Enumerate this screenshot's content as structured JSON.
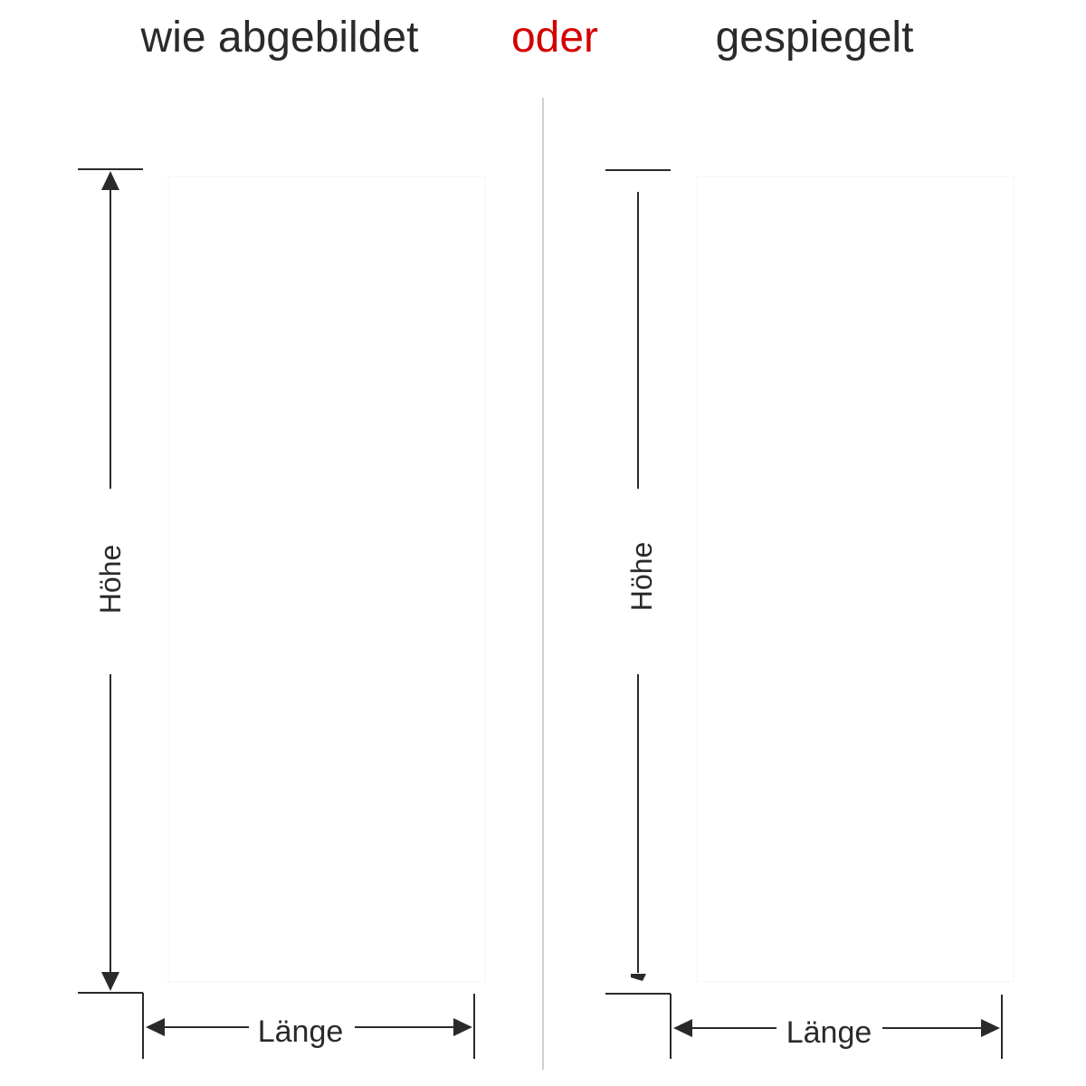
{
  "header": {
    "left": "wie abgebildet",
    "middle": "oder",
    "right": "gespiegelt"
  },
  "colors": {
    "accent": "#d40000",
    "line": "#2a2a2a",
    "divider": "#d0d0d0"
  },
  "panels": [
    {
      "height_label": "Höhe",
      "length_label": "Länge",
      "variant": "as-shown"
    },
    {
      "height_label": "Höhe",
      "length_label": "Länge",
      "variant": "mirrored"
    }
  ]
}
